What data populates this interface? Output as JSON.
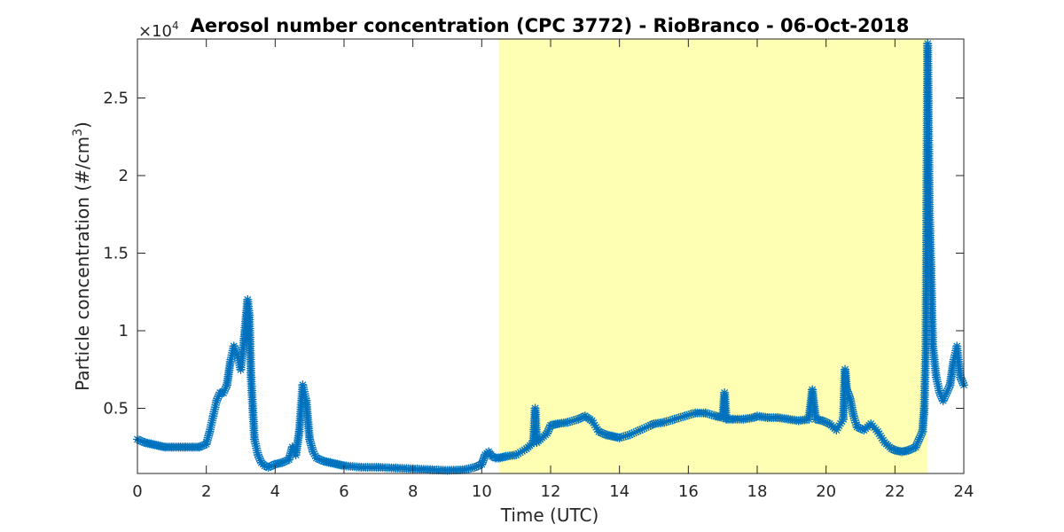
{
  "chart_data": {
    "type": "scatter",
    "title": "Aerosol number concentration (CPC 3772) - RioBranco - 06-Oct-2018",
    "xlabel": "Time (UTC)",
    "ylabel": "Particle concentration (#/cm",
    "ylabel_superscript": "3",
    "ylabel_suffix": ")",
    "exponent_label": "×10",
    "exponent_power": "4",
    "marker": "*",
    "xlim": [
      0,
      24
    ],
    "ylim": [
      800,
      28800
    ],
    "xticks": [
      0,
      2,
      4,
      6,
      8,
      10,
      12,
      14,
      16,
      18,
      20,
      22,
      24
    ],
    "xtick_labels": [
      "0",
      "2",
      "4",
      "6",
      "8",
      "10",
      "12",
      "14",
      "16",
      "18",
      "20",
      "22",
      "24"
    ],
    "yticks": [
      5000,
      10000,
      15000,
      20000,
      25000
    ],
    "ytick_labels": [
      "0.5",
      "1",
      "1.5",
      "2",
      "2.5"
    ],
    "grid": false,
    "colors": {
      "series": "#0072BD",
      "shade": "#FFFFB3",
      "axes": "#262626"
    },
    "shaded_region": {
      "x_start": 10.5,
      "x_end": 22.95
    },
    "series": [
      {
        "x": [
          0.0,
          0.2,
          0.4,
          0.6,
          0.8,
          1.0,
          1.2,
          1.4,
          1.6,
          1.8,
          2.0,
          2.1,
          2.2,
          2.3,
          2.4,
          2.5,
          2.6,
          2.7,
          2.8,
          2.9,
          3.0,
          3.1,
          3.2,
          3.25,
          3.3,
          3.35,
          3.4,
          3.5,
          3.6,
          3.7,
          3.8,
          4.0,
          4.2,
          4.4,
          4.5,
          4.6,
          4.7,
          4.8,
          4.9,
          5.0,
          5.1,
          5.2,
          5.4,
          5.6,
          5.8,
          6.0,
          6.5,
          7.0,
          7.5,
          8.0,
          8.5,
          9.0,
          9.5,
          9.8,
          10.0,
          10.1,
          10.2,
          10.3,
          10.4,
          10.5,
          10.7,
          11.0,
          11.3,
          11.5,
          11.55,
          11.6,
          11.7,
          11.9,
          12.0,
          12.2,
          12.5,
          12.8,
          13.0,
          13.2,
          13.4,
          13.6,
          13.8,
          14.0,
          14.3,
          14.6,
          14.9,
          15.0,
          15.3,
          15.6,
          15.9,
          16.2,
          16.5,
          16.8,
          17.0,
          17.05,
          17.1,
          17.3,
          17.6,
          17.9,
          18.0,
          18.3,
          18.6,
          18.9,
          19.2,
          19.5,
          19.6,
          19.7,
          19.9,
          20.1,
          20.3,
          20.5,
          20.55,
          20.6,
          20.7,
          20.8,
          20.9,
          21.1,
          21.3,
          21.5,
          21.7,
          21.9,
          22.0,
          22.2,
          22.4,
          22.6,
          22.7,
          22.8,
          22.85,
          22.9,
          22.95,
          23.0,
          23.05,
          23.1,
          23.2,
          23.3,
          23.4,
          23.5,
          23.6,
          23.7,
          23.8,
          23.9,
          24.0
        ],
        "y": [
          3000,
          2800,
          2700,
          2600,
          2500,
          2500,
          2500,
          2500,
          2500,
          2500,
          2700,
          3500,
          4500,
          5500,
          6000,
          6000,
          6500,
          8000,
          9000,
          8500,
          7500,
          9500,
          12000,
          11000,
          7000,
          5000,
          3000,
          2000,
          1500,
          1300,
          1200,
          1400,
          1500,
          1700,
          2500,
          2000,
          3500,
          6500,
          5500,
          3000,
          2200,
          1800,
          1600,
          1500,
          1400,
          1300,
          1200,
          1200,
          1150,
          1100,
          1050,
          1000,
          1050,
          1200,
          1400,
          2000,
          2200,
          1900,
          1800,
          1800,
          1900,
          2000,
          2400,
          2800,
          5000,
          2800,
          3000,
          3400,
          3900,
          4000,
          4100,
          4300,
          4500,
          4200,
          3500,
          3300,
          3200,
          3100,
          3300,
          3600,
          3900,
          4000,
          4100,
          4300,
          4500,
          4700,
          4700,
          4500,
          4400,
          6000,
          4300,
          4300,
          4300,
          4400,
          4500,
          4400,
          4400,
          4300,
          4200,
          4300,
          6200,
          4300,
          4200,
          4000,
          3600,
          4300,
          7500,
          6200,
          5600,
          4500,
          3800,
          3600,
          4000,
          3500,
          2800,
          2400,
          2300,
          2200,
          2300,
          2500,
          3000,
          3500,
          5000,
          9000,
          28500,
          18000,
          14000,
          9000,
          7000,
          6000,
          5500,
          6000,
          6500,
          8000,
          9000,
          7000,
          6500
        ]
      }
    ]
  }
}
